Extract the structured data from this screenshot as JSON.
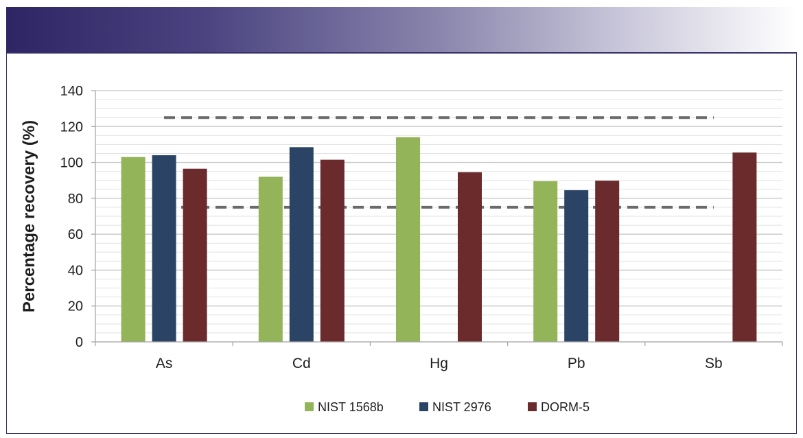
{
  "chart_data": {
    "type": "bar",
    "title": "",
    "xlabel": "",
    "ylabel": "Percentage recovery (%)",
    "ylim": [
      0,
      140
    ],
    "yticks": [
      0,
      20,
      40,
      60,
      80,
      100,
      120,
      140
    ],
    "minor_grid_step": 5,
    "categories": [
      "As",
      "Cd",
      "Hg",
      "Pb",
      "Sb"
    ],
    "series": [
      {
        "name": "NIST 1568b",
        "color": "#94b45a",
        "values": [
          103,
          92,
          114,
          89.5,
          null
        ]
      },
      {
        "name": "NIST 2976",
        "color": "#2b4466",
        "values": [
          104,
          108.5,
          null,
          84.5,
          null
        ]
      },
      {
        "name": "DORM-5",
        "color": "#6b2a2c",
        "values": [
          96.5,
          101.5,
          94.5,
          89.8,
          105.5
        ]
      }
    ],
    "reference_lines": [
      {
        "value": 125,
        "style": "dashed",
        "color": "#6a6a6a"
      },
      {
        "value": 75,
        "style": "dashed",
        "color": "#6a6a6a"
      }
    ],
    "legend_position": "bottom"
  },
  "colors": {
    "banner_start": "#2e2664",
    "frame_border": "#34306a"
  }
}
